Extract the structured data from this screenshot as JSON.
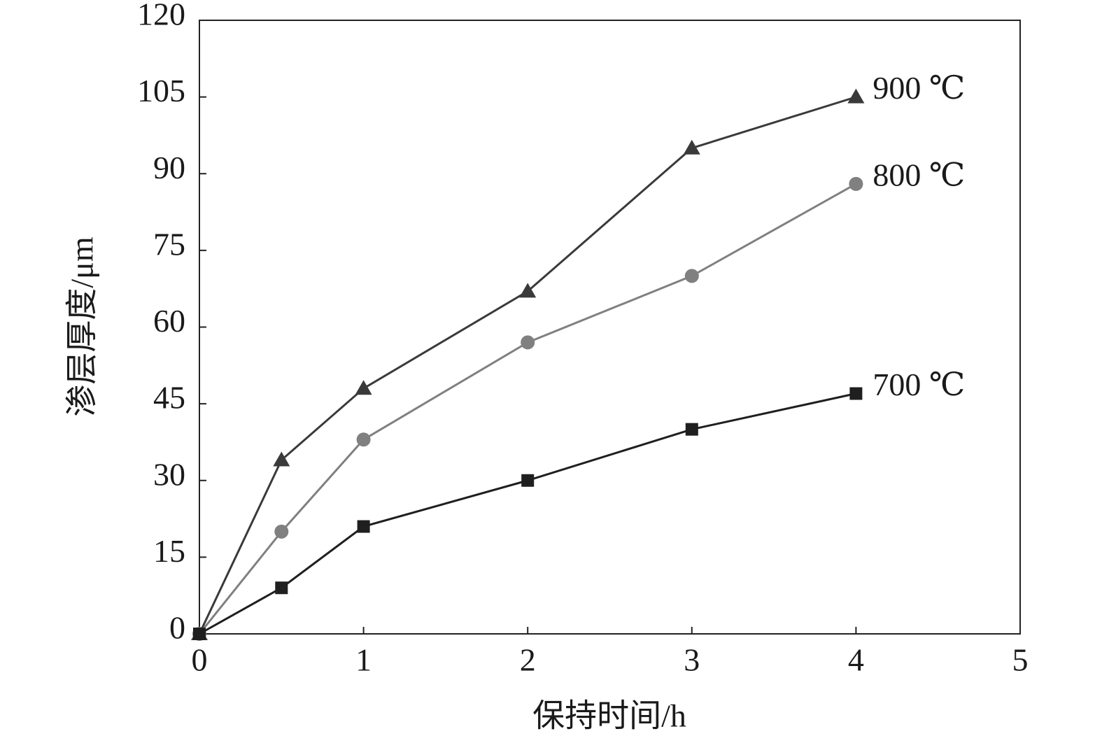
{
  "chart_data": {
    "type": "line",
    "x": [
      0,
      0.5,
      1,
      2,
      3,
      4
    ],
    "xlim": [
      0,
      5
    ],
    "xticks": [
      0,
      1,
      2,
      3,
      4,
      5
    ],
    "ylim": [
      0,
      120
    ],
    "yticks": [
      0,
      15,
      30,
      45,
      60,
      75,
      90,
      105,
      120
    ],
    "xlabel": "保持时间/h",
    "ylabel": "渗层厚度/μm",
    "series": [
      {
        "name": "900 ℃",
        "color": "#3a3a3a",
        "marker": "triangle",
        "values": [
          0,
          34,
          48,
          67,
          95,
          105
        ]
      },
      {
        "name": "800 ℃",
        "color": "#808080",
        "marker": "circle",
        "values": [
          0,
          20,
          38,
          57,
          70,
          88
        ]
      },
      {
        "name": "700 ℃",
        "color": "#1f1f1f",
        "marker": "square",
        "values": [
          0,
          9,
          21,
          30,
          40,
          47
        ]
      }
    ]
  }
}
